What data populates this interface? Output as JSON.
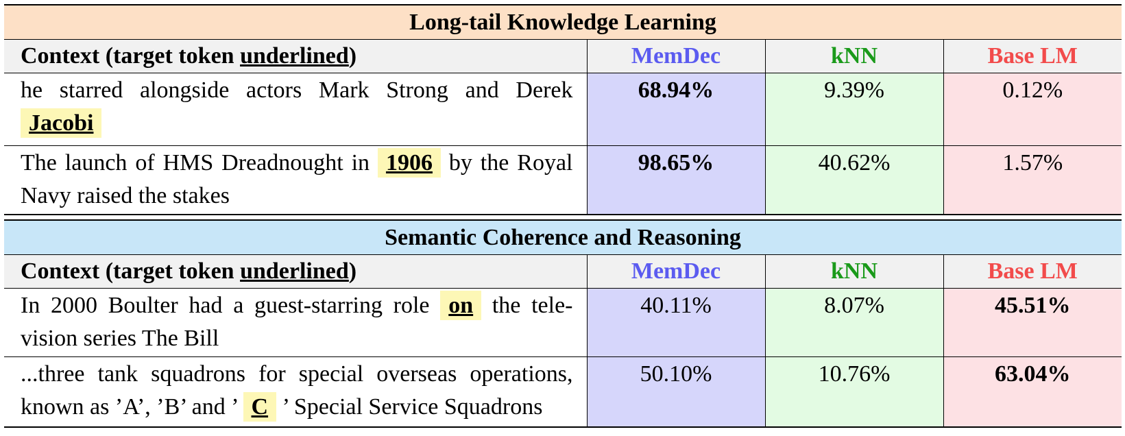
{
  "sections": [
    {
      "title": "Long-tail Knowledge Learning",
      "header": {
        "context_prefix": "Context (target token ",
        "context_underlined": "underlined",
        "context_suffix": ")",
        "memdec": "MemDec",
        "knn": "kNN",
        "base": "Base LM"
      },
      "rows": [
        {
          "before": "he starred alongside actors Mark Strong and Derek ",
          "target": "Jacobi",
          "after": "",
          "memdec": "68.94%",
          "knn": "9.39%",
          "base": "0.12%"
        },
        {
          "before": "The launch of HMS Dreadnought in ",
          "target": "1906",
          "after": " by the Royal Navy raised the stakes",
          "memdec": "98.65%",
          "knn": "40.62%",
          "base": "1.57%"
        }
      ]
    },
    {
      "title": "Semantic Coherence and Reasoning",
      "header": {
        "context_prefix": "Context (target token ",
        "context_underlined": "underlined",
        "context_suffix": ")",
        "memdec": "MemDec",
        "knn": "kNN",
        "base": "Base LM"
      },
      "rows": [
        {
          "before": "In 2000 Boulter had a guest-starring role ",
          "target": "on",
          "after": " the tele-vision series The Bill",
          "memdec": "40.11%",
          "knn": "8.07%",
          "base": "45.51%"
        },
        {
          "before": "...three tank squadrons for special overseas operations, known as ’A’, ’B’ and ’ ",
          "target": "C",
          "after": " ’ Special Service Squadrons",
          "memdec": "50.10%",
          "knn": "10.76%",
          "base": "63.04%"
        }
      ]
    }
  ],
  "colors": {
    "memdec": "#5b5bf0",
    "knn": "#1a9a1a",
    "base": "#f24b4b",
    "title_orange": "#fde0c6",
    "title_blue": "#c8e6f8",
    "highlight": "#fdf7b6"
  }
}
